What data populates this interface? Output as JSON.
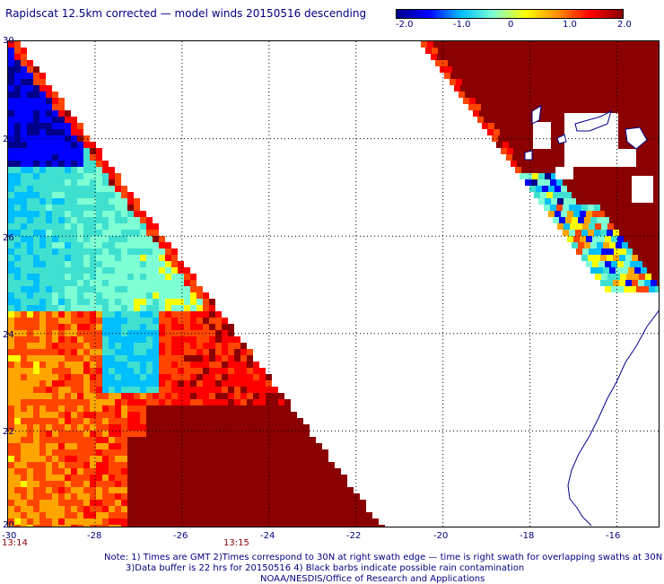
{
  "title": "Rapidscat 12.5km corrected — model winds 20150516 descending",
  "colorbar": {
    "labels": [
      "-2.0",
      "-1.0",
      "0",
      "1.0",
      "2.0"
    ],
    "colors": [
      "#00008b",
      "#0000ff",
      "#00bfff",
      "#7fffd4",
      "#ffff00",
      "#ff8c00",
      "#ff0000",
      "#8b0000"
    ]
  },
  "axes": {
    "y_ticks": [
      "30",
      "28",
      "26",
      "24",
      "22",
      "20"
    ],
    "x_ticks": [
      "-30",
      "-28",
      "-26",
      "-24",
      "-22",
      "-20",
      "-18",
      "-16"
    ]
  },
  "times": [
    "13:14",
    "13:15"
  ],
  "notes": {
    "line1": "Note: 1) Times are GMT 2)Times correspond to 30N at right swath edge — time is right swath for overlapping swaths at 30N",
    "line2": "3)Data buffer is 22 hrs for 20150516 4) Black barbs indicate possible rain contamination",
    "credit": "NOAA/NESDIS/Office of Research and Applications"
  },
  "map": {
    "region": {
      "lon": [
        -30,
        -15
      ],
      "lat": [
        20,
        30
      ]
    }
  }
}
